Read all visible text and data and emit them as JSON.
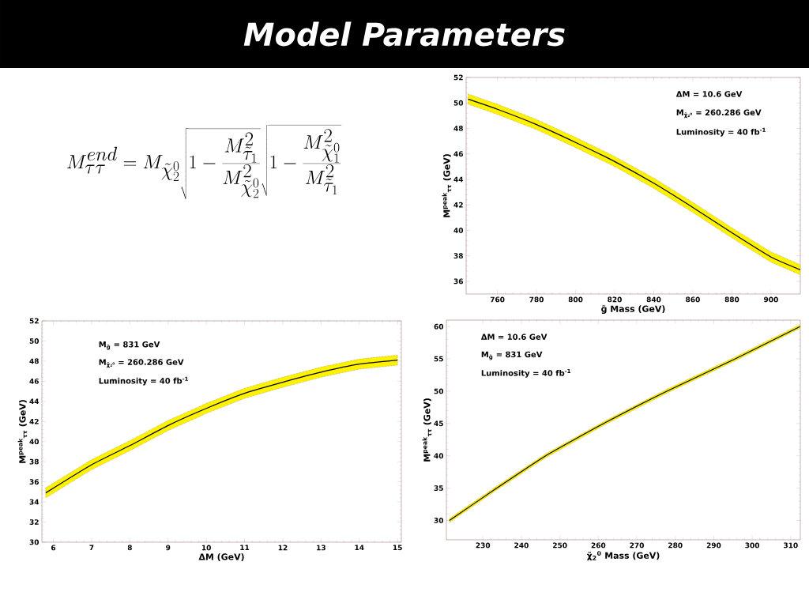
{
  "chart_data": [
    {
      "type": "line",
      "title": "Model Parameters",
      "xlabel": "g̃ Mass (GeV)",
      "ylabel": "M$^{peak}$$_{ττ}$ (GeV)",
      "annotations": [
        "M_{\\tau\\tau}^{end} = M_{\\tilde{\\chi}_2^0}\\sqrt{1-\\frac{M_{\\tilde{\\tau}_1}^2}{M_{\\tilde{\\chi}_2^0}^2}}\\sqrt{1-\\frac{M_{\\tilde{\\chi}_1^0}^2}{M_{\\tilde{\\tau}_1}^2}}",
        "ΔM = 10.6 GeV",
        "M$_{χ̃₂⁰}$ = 260.286 GeV",
        "Luminosity = 40 fb$^{-1}$"
      ],
      "x": [
        745,
        760,
        780,
        800,
        820,
        840,
        860,
        880,
        900,
        915
      ],
      "series": [
        {
          "color": "#000000",
          "values": [
            50.3,
            49.5,
            48.3,
            46.9,
            45.4,
            43.7,
            41.8,
            39.8,
            37.9,
            36.9
          ],
          "lower": [
            49.9,
            49.1,
            47.9,
            46.5,
            45.0,
            43.3,
            41.4,
            39.4,
            37.5,
            36.5
          ],
          "upper": [
            50.7,
            49.9,
            48.7,
            47.3,
            45.8,
            44.1,
            42.2,
            40.2,
            38.3,
            37.3
          ]
        }
      ],
      "xlim": [
        744,
        915
      ],
      "ylim": [
        35,
        52
      ],
      "xticks": [
        760,
        780,
        800,
        820,
        840,
        860,
        880,
        900
      ],
      "yticks": [
        36,
        38,
        40,
        42,
        44,
        46,
        48,
        50,
        52
      ]
    },
    {
      "type": "line",
      "xlabel": "ΔM (GeV)",
      "ylabel": "M$^{peak}$$_{ττ}$ (GeV)",
      "annotations": [
        "M$_{g̃}$ = 831 GeV",
        "M$_{χ̃₂⁰}$ = 260.286 GeV",
        "Luminosity = 40 fb$^{-1}$"
      ],
      "x": [
        5.8,
        7,
        8,
        9,
        10,
        11,
        12,
        13,
        14,
        15
      ],
      "series": [
        {
          "color": "#000000",
          "values": [
            34.9,
            37.7,
            39.6,
            41.6,
            43.3,
            44.8,
            45.9,
            46.9,
            47.7,
            48.1
          ],
          "lower": [
            34.4,
            37.2,
            39.1,
            41.1,
            42.8,
            44.3,
            45.4,
            46.4,
            47.2,
            47.6
          ],
          "upper": [
            35.4,
            38.2,
            40.1,
            42.1,
            43.8,
            45.3,
            46.4,
            47.4,
            48.2,
            48.6
          ]
        }
      ],
      "xlim": [
        5.7,
        15.1
      ],
      "ylim": [
        30,
        52
      ],
      "xticks": [
        6,
        7,
        8,
        9,
        10,
        11,
        12,
        13,
        14,
        15
      ],
      "yticks": [
        30,
        32,
        34,
        36,
        38,
        40,
        42,
        44,
        46,
        48,
        50,
        52
      ]
    },
    {
      "type": "line",
      "xlabel": "χ̃$_{2}$$^{0}$ Mass (GeV)",
      "ylabel": "M$^{peak}$$_{ττ}$ (GeV)",
      "annotations": [
        "ΔM = 10.6 GeV",
        "M$_{g̃}$ = 831 GeV",
        "Luminosity = 40 fb$^{-1}$"
      ],
      "x": [
        221.3,
        233.6,
        246.3,
        261.4,
        277.8,
        295.6,
        312.4
      ],
      "series": [
        {
          "color": "#000000",
          "values": [
            30,
            35,
            40,
            45,
            50,
            55,
            60
          ],
          "lower": [
            29.7,
            34.7,
            39.7,
            44.7,
            49.7,
            54.7,
            59.7
          ],
          "upper": [
            30.3,
            35.3,
            40.3,
            45.3,
            50.3,
            55.3,
            60.3
          ]
        }
      ],
      "xlim": [
        220.5,
        312.5
      ],
      "ylim": [
        27,
        61
      ],
      "xticks": [
        230,
        240,
        250,
        260,
        270,
        280,
        290,
        300,
        310
      ],
      "yticks": [
        30,
        35,
        40,
        45,
        50,
        55,
        60
      ]
    }
  ]
}
